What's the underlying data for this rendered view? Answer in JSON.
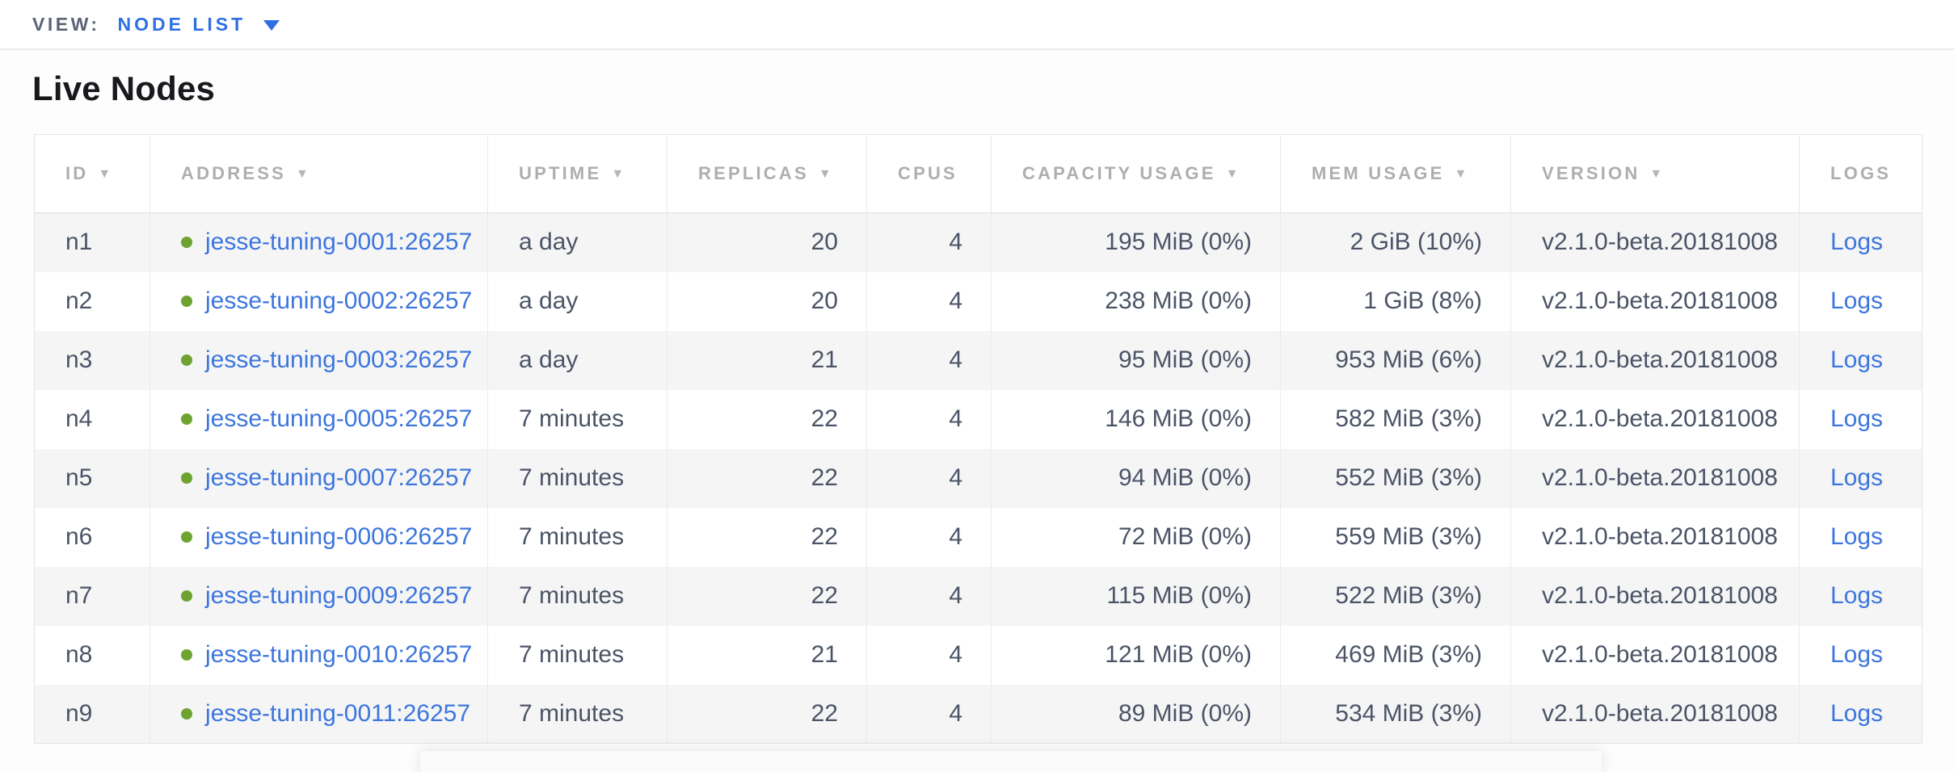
{
  "view_bar": {
    "label": "VIEW:",
    "selected": "NODE LIST"
  },
  "page": {
    "title": "Live Nodes"
  },
  "icons": {
    "sort_arrow": "▼",
    "dropdown_caret": "caret-down",
    "live_dot": "green-circle"
  },
  "colors": {
    "accent_blue": "#2f6fe2",
    "link_blue": "#3d76dd",
    "live_green": "#6ea331",
    "header_gray": "#aeaeb1",
    "cell_text": "#4b5466",
    "row_stripe": "#f5f5f6"
  },
  "table": {
    "columns": [
      {
        "key": "id",
        "label": "ID",
        "sortable": true,
        "align": "left"
      },
      {
        "key": "address",
        "label": "ADDRESS",
        "sortable": true,
        "align": "left"
      },
      {
        "key": "uptime",
        "label": "UPTIME",
        "sortable": true,
        "align": "left"
      },
      {
        "key": "replicas",
        "label": "REPLICAS",
        "sortable": true,
        "align": "right"
      },
      {
        "key": "cpus",
        "label": "CPUS",
        "sortable": false,
        "align": "right"
      },
      {
        "key": "capacity",
        "label": "CAPACITY USAGE",
        "sortable": true,
        "align": "right"
      },
      {
        "key": "mem",
        "label": "MEM USAGE",
        "sortable": true,
        "align": "right"
      },
      {
        "key": "version",
        "label": "VERSION",
        "sortable": true,
        "align": "left"
      },
      {
        "key": "logs",
        "label": "LOGS",
        "sortable": false,
        "align": "left"
      }
    ],
    "rows": [
      {
        "id": "n1",
        "status": "live",
        "address": "jesse-tuning-0001:26257",
        "uptime": "a day",
        "replicas": "20",
        "cpus": "4",
        "capacity": "195 MiB (0%)",
        "mem": "2 GiB (10%)",
        "version": "v2.1.0-beta.20181008",
        "logs": "Logs"
      },
      {
        "id": "n2",
        "status": "live",
        "address": "jesse-tuning-0002:26257",
        "uptime": "a day",
        "replicas": "20",
        "cpus": "4",
        "capacity": "238 MiB (0%)",
        "mem": "1 GiB (8%)",
        "version": "v2.1.0-beta.20181008",
        "logs": "Logs"
      },
      {
        "id": "n3",
        "status": "live",
        "address": "jesse-tuning-0003:26257",
        "uptime": "a day",
        "replicas": "21",
        "cpus": "4",
        "capacity": "95 MiB (0%)",
        "mem": "953 MiB (6%)",
        "version": "v2.1.0-beta.20181008",
        "logs": "Logs"
      },
      {
        "id": "n4",
        "status": "live",
        "address": "jesse-tuning-0005:26257",
        "uptime": "7 minutes",
        "replicas": "22",
        "cpus": "4",
        "capacity": "146 MiB (0%)",
        "mem": "582 MiB (3%)",
        "version": "v2.1.0-beta.20181008",
        "logs": "Logs"
      },
      {
        "id": "n5",
        "status": "live",
        "address": "jesse-tuning-0007:26257",
        "uptime": "7 minutes",
        "replicas": "22",
        "cpus": "4",
        "capacity": "94 MiB (0%)",
        "mem": "552 MiB (3%)",
        "version": "v2.1.0-beta.20181008",
        "logs": "Logs"
      },
      {
        "id": "n6",
        "status": "live",
        "address": "jesse-tuning-0006:26257",
        "uptime": "7 minutes",
        "replicas": "22",
        "cpus": "4",
        "capacity": "72 MiB (0%)",
        "mem": "559 MiB (3%)",
        "version": "v2.1.0-beta.20181008",
        "logs": "Logs"
      },
      {
        "id": "n7",
        "status": "live",
        "address": "jesse-tuning-0009:26257",
        "uptime": "7 minutes",
        "replicas": "22",
        "cpus": "4",
        "capacity": "115 MiB (0%)",
        "mem": "522 MiB (3%)",
        "version": "v2.1.0-beta.20181008",
        "logs": "Logs"
      },
      {
        "id": "n8",
        "status": "live",
        "address": "jesse-tuning-0010:26257",
        "uptime": "7 minutes",
        "replicas": "21",
        "cpus": "4",
        "capacity": "121 MiB (0%)",
        "mem": "469 MiB (3%)",
        "version": "v2.1.0-beta.20181008",
        "logs": "Logs"
      },
      {
        "id": "n9",
        "status": "live",
        "address": "jesse-tuning-0011:26257",
        "uptime": "7 minutes",
        "replicas": "22",
        "cpus": "4",
        "capacity": "89 MiB (0%)",
        "mem": "534 MiB (3%)",
        "version": "v2.1.0-beta.20181008",
        "logs": "Logs"
      }
    ]
  }
}
